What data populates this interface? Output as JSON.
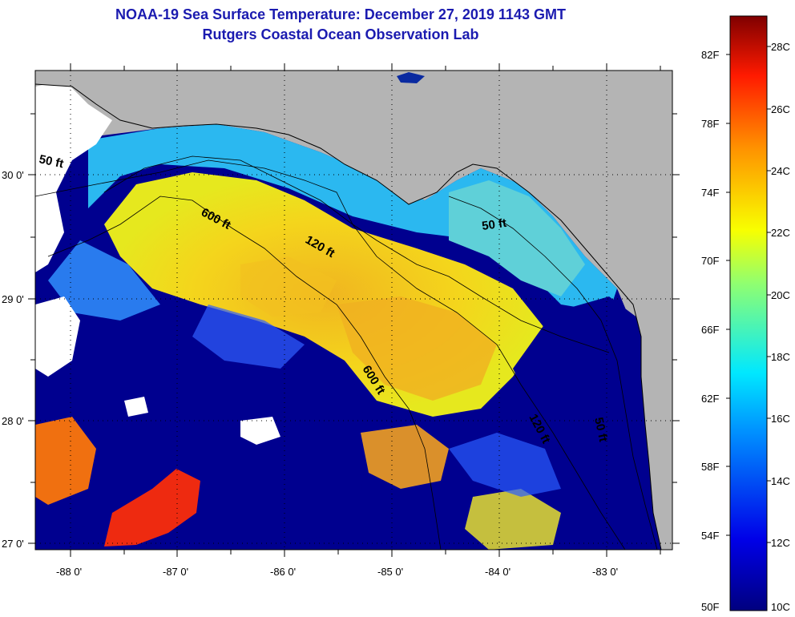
{
  "title": {
    "line1": "NOAA-19 Sea Surface Temperature:  December 27, 2019 1143 GMT",
    "line2": "Rutgers Coastal Ocean Observation Lab"
  },
  "colors": {
    "land": "#b4b4b4",
    "clouds": "#ffffff",
    "cold": "#00008f",
    "title": "#1b1bb0"
  },
  "map": {
    "lat_ticks": [
      "30 0'",
      "29 0'",
      "28 0'",
      "27 0'"
    ],
    "lon_ticks": [
      "-88 0'",
      "-87 0'",
      "-86 0'",
      "-85 0'",
      "-84 0'",
      "-83 0'"
    ],
    "contour_labels": [
      "50 ft",
      "600 ft",
      "120 ft",
      "50 ft",
      "600 ft",
      "120 ft",
      "50 ft"
    ]
  },
  "colorbar": {
    "f_labels": [
      "82F",
      "78F",
      "74F",
      "70F",
      "66F",
      "62F",
      "58F",
      "54F",
      "50F"
    ],
    "c_labels": [
      "28C",
      "26C",
      "24C",
      "22C",
      "20C",
      "18C",
      "16C",
      "14C",
      "12C",
      "10C"
    ]
  }
}
